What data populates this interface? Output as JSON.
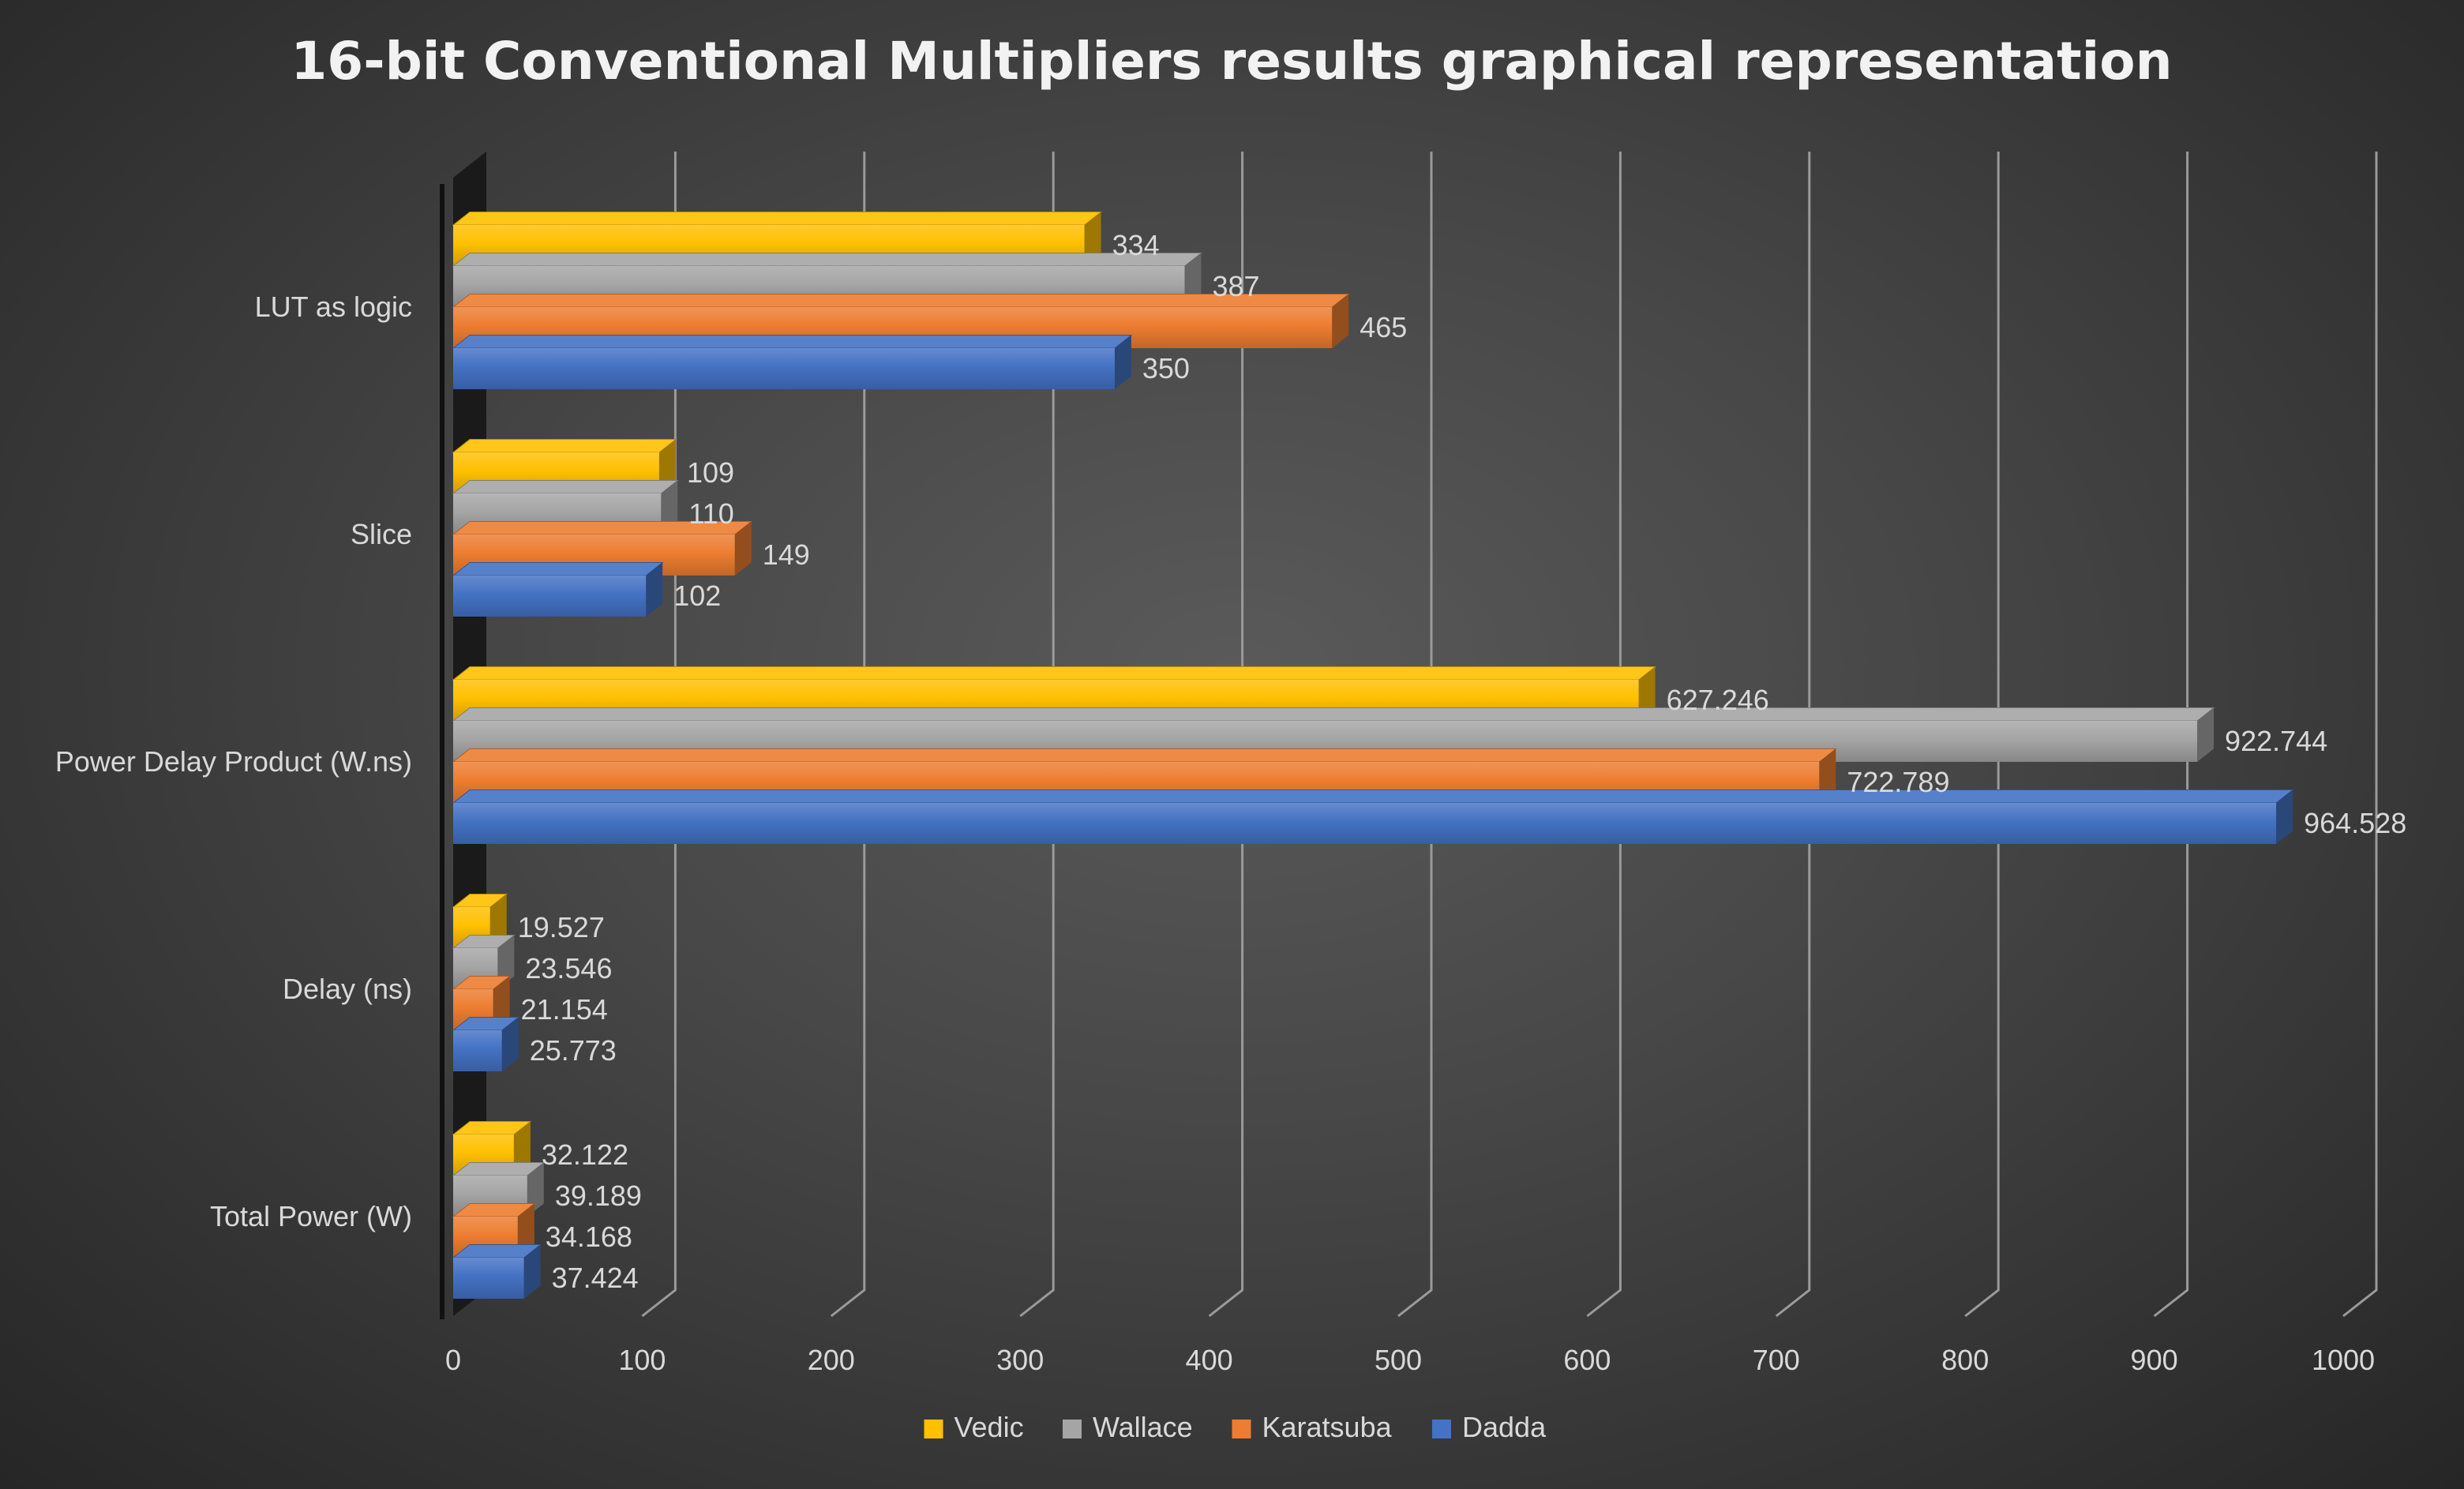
{
  "chart_data": {
    "type": "bar",
    "orientation": "horizontal",
    "style": "3d-clustered",
    "title": "16-bit Conventional Multipliers results graphical representation",
    "xlabel": "",
    "ylabel": "",
    "xlim": [
      0,
      1000
    ],
    "xticks": [
      "0",
      "100",
      "200",
      "300",
      "400",
      "500",
      "600",
      "700",
      "800",
      "900",
      "1000"
    ],
    "grid": true,
    "legend_position": "bottom",
    "categories": [
      "LUT as logic",
      "Slice",
      "Power Delay Product (W.ns)",
      "Delay (ns)",
      "Total Power (W)"
    ],
    "series": [
      {
        "name": "Vedic",
        "color": "#ffc000",
        "values": [
          334,
          109,
          627.246,
          19.527,
          32.122
        ],
        "labels": [
          "334",
          "109",
          "627.246",
          "19.527",
          "32.122"
        ]
      },
      {
        "name": "Wallace",
        "color": "#a5a5a5",
        "values": [
          387,
          110,
          922.744,
          23.546,
          39.189
        ],
        "labels": [
          "387",
          "110",
          "922.744",
          "23.546",
          "39.189"
        ]
      },
      {
        "name": "Karatsuba",
        "color": "#ed7d31",
        "values": [
          465,
          149,
          722.789,
          21.154,
          34.168
        ],
        "labels": [
          "465",
          "149",
          "722.789",
          "21.154",
          "34.168"
        ]
      },
      {
        "name": "Dadda",
        "color": "#4472c4",
        "values": [
          350,
          102,
          964.528,
          25.773,
          37.424
        ],
        "labels": [
          "350",
          "102",
          "964.528",
          "25.773",
          "37.424"
        ]
      }
    ]
  }
}
